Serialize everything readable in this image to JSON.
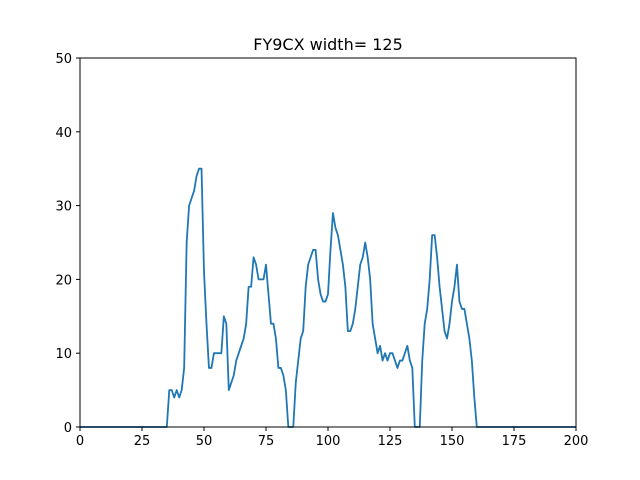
{
  "chart_data": {
    "type": "line",
    "title": "FY9CX width= 125",
    "xlabel": "",
    "ylabel": "",
    "xlim": [
      0,
      200
    ],
    "ylim": [
      0,
      50
    ],
    "xticks": [
      0,
      25,
      50,
      75,
      100,
      125,
      150,
      175,
      200
    ],
    "yticks": [
      0,
      10,
      20,
      30,
      40,
      50
    ],
    "grid": false,
    "series_color": "#1f77b4",
    "series": [
      {
        "x": [
          0,
          35,
          36,
          37,
          38,
          39,
          40,
          41,
          42,
          43,
          44,
          45,
          46,
          47,
          48,
          49,
          50,
          51,
          52,
          53,
          54,
          55,
          56,
          57,
          58,
          59,
          60,
          61,
          62,
          63,
          64,
          65,
          66,
          67,
          68,
          69,
          70,
          71,
          72,
          73,
          74,
          75,
          76,
          77,
          78,
          79,
          80,
          81,
          82,
          83,
          84,
          85,
          86,
          87,
          88,
          89,
          90,
          91,
          92,
          93,
          94,
          95,
          96,
          97,
          98,
          99,
          100,
          101,
          102,
          103,
          104,
          105,
          106,
          107,
          108,
          109,
          110,
          111,
          112,
          113,
          114,
          115,
          116,
          117,
          118,
          119,
          120,
          121,
          122,
          123,
          124,
          125,
          126,
          127,
          128,
          129,
          130,
          131,
          132,
          133,
          134,
          135,
          136,
          137,
          138,
          139,
          140,
          141,
          142,
          143,
          144,
          145,
          146,
          147,
          148,
          149,
          150,
          151,
          152,
          153,
          154,
          155,
          156,
          157,
          158,
          159,
          160,
          161,
          200
        ],
        "y": [
          0,
          0,
          5,
          5,
          4,
          5,
          4,
          5,
          8,
          25,
          30,
          31,
          32,
          34,
          35,
          35,
          21,
          14,
          8,
          8,
          10,
          10,
          10,
          10,
          15,
          14,
          5,
          6,
          7,
          9,
          10,
          11,
          12,
          14,
          19,
          19,
          23,
          22,
          20,
          20,
          20,
          22,
          18,
          14,
          14,
          12,
          8,
          8,
          7,
          5,
          0,
          0,
          0,
          6,
          9,
          12,
          13,
          19,
          22,
          23,
          24,
          24,
          20,
          18,
          17,
          17,
          18,
          24,
          29,
          27,
          26,
          24,
          22,
          19,
          13,
          13,
          14,
          16,
          19,
          22,
          23,
          25,
          23,
          20,
          14,
          12,
          10,
          11,
          9,
          10,
          9,
          10,
          10,
          9,
          8,
          9,
          9,
          10,
          11,
          9,
          8,
          0,
          0,
          0,
          9,
          14,
          16,
          20,
          26,
          26,
          23,
          19,
          16,
          13,
          12,
          14,
          17,
          19,
          22,
          17,
          16,
          16,
          14,
          12,
          9,
          4,
          0,
          0,
          0
        ]
      }
    ]
  }
}
